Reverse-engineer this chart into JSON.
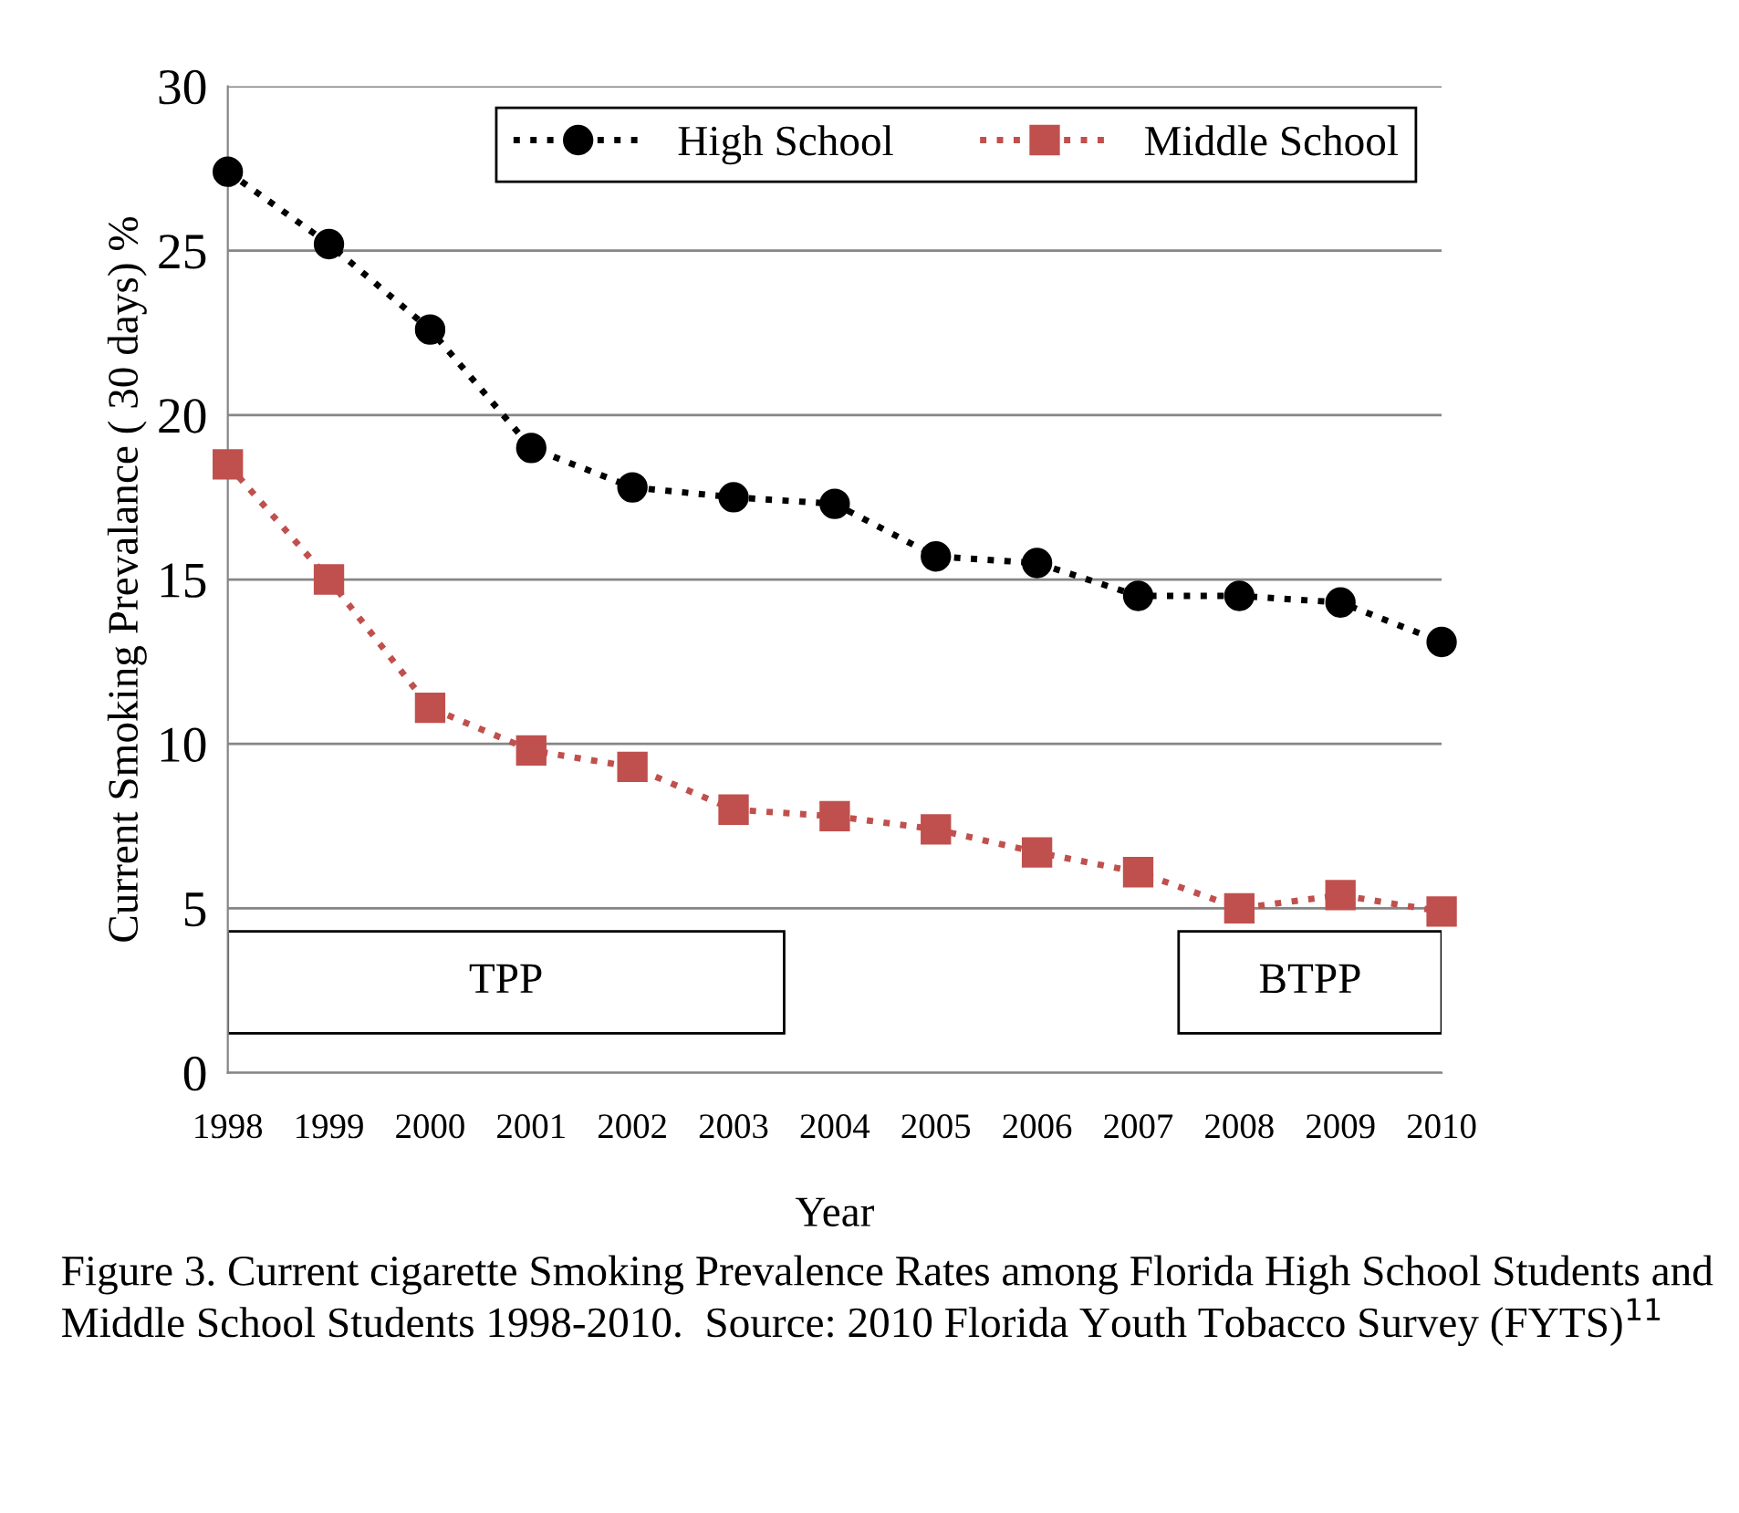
{
  "chart_data": {
    "type": "line",
    "xlabel": "Year",
    "ylabel": "Current Smoking Prevalance ( 30 days) %",
    "x": [
      1998,
      1999,
      2000,
      2001,
      2002,
      2003,
      2004,
      2005,
      2006,
      2007,
      2008,
      2009,
      2010
    ],
    "xlim": [
      1998,
      2010
    ],
    "xticks": [
      1998,
      1999,
      2000,
      2001,
      2002,
      2003,
      2004,
      2005,
      2006,
      2007,
      2008,
      2009,
      2010
    ],
    "ylim": [
      0,
      30
    ],
    "yticks": [
      0,
      5,
      10,
      15,
      20,
      25,
      30
    ],
    "grid": "y",
    "legend": "top",
    "line_style": "dotted",
    "series": [
      {
        "name": "High School",
        "color": "#000000",
        "marker": "circle",
        "values": [
          27.4,
          25.2,
          22.6,
          19.0,
          17.8,
          17.5,
          17.3,
          15.7,
          15.5,
          14.5,
          14.5,
          14.3,
          13.1
        ]
      },
      {
        "name": "Middle School",
        "color": "#c0504d",
        "marker": "square",
        "values": [
          18.5,
          15.0,
          11.1,
          9.8,
          9.3,
          8.0,
          7.8,
          7.4,
          6.7,
          6.1,
          5.0,
          5.4,
          4.9
        ]
      }
    ],
    "bands": [
      {
        "axis": "x",
        "from": 1998,
        "to": 2003.5,
        "label": "TPP"
      },
      {
        "axis": "x",
        "from": 2007.4,
        "to": 2010,
        "label": "BTPP"
      }
    ],
    "annotations": [
      "Figure 3. Current cigarette Smoking Prevalence Rates among Florida High School Students and Middle School Students 1998-2010.  Source: 2010 Florida Youth Tobacco Survey (FYTS)$^{11}$"
    ]
  }
}
